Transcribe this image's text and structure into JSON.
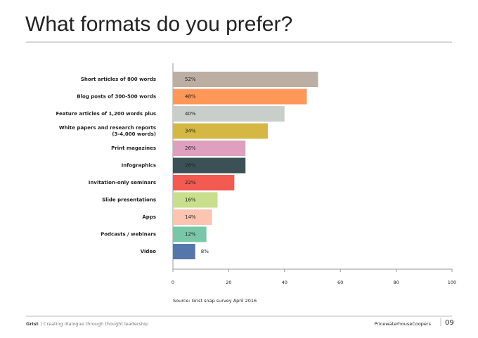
{
  "chart_data": {
    "type": "hbar",
    "title": "What formats do you prefer?",
    "categories": [
      "Short articles of 800 words",
      "Blog posts of 300-500 words",
      "Feature articles of 1,200 words plus",
      "White papers and research reports\n(3-4,000 words)",
      "Print magazines",
      "Infographics",
      "Invitation-only seminars",
      "Slide presentations",
      "Apps",
      "Podcasts / webinars",
      "Video"
    ],
    "values": [
      52,
      48,
      40,
      34,
      26,
      26,
      22,
      16,
      14,
      12,
      8
    ],
    "value_labels": [
      "52%",
      "48%",
      "40%",
      "34%",
      "26%",
      "26%",
      "22%",
      "16%",
      "14%",
      "12%",
      "8%"
    ],
    "colors": [
      "#bcaea3",
      "#fd9859",
      "#c8ceca",
      "#d4b843",
      "#dfa0bf",
      "#3b5156",
      "#f25a52",
      "#c9df8e",
      "#fcc4b1",
      "#79c7a8",
      "#5576ab"
    ],
    "xlim": [
      0,
      100
    ],
    "xticks": [
      0,
      20,
      40,
      60,
      80,
      100
    ],
    "source": "Source: Grist snap survey April 2016"
  },
  "footer": {
    "brand": "Grist",
    "tagline": "/ Creating dialogue through thought leadership",
    "company": "PricewaterhouseCoopers",
    "page": "09"
  }
}
